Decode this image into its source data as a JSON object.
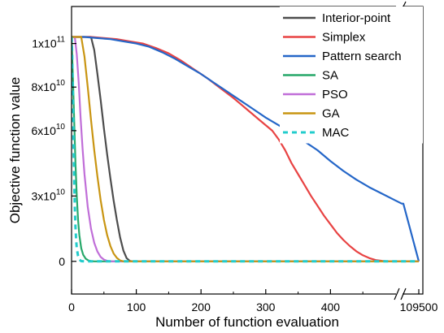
{
  "chart_data": {
    "type": "line",
    "xlabel": "Number of function evaluation",
    "ylabel": "Objective function value",
    "xlim": [
      0,
      109500
    ],
    "ylim": [
      -15000000000.0,
      117000000000.0
    ],
    "x_axis_break": {
      "from": 510,
      "to": 108500
    },
    "x_ticks": [
      {
        "value": 0,
        "label": "0"
      },
      {
        "value": 100,
        "label": "100"
      },
      {
        "value": 200,
        "label": "200"
      },
      {
        "value": 300,
        "label": "300"
      },
      {
        "value": 400,
        "label": "400"
      },
      {
        "value": 109500,
        "label": "109500"
      }
    ],
    "y_ticks": [
      {
        "value": 0,
        "label": "0",
        "mant": "",
        "exp": ""
      },
      {
        "value": 30000000000.0,
        "label": "3x10^10",
        "mant": "3x10",
        "exp": "10"
      },
      {
        "value": 60000000000.0,
        "label": "6x10^10",
        "mant": "6x10",
        "exp": "10"
      },
      {
        "value": 80000000000.0,
        "label": "8x10^10",
        "mant": "8x10",
        "exp": "10"
      },
      {
        "value": 100000000000.0,
        "label": "1x10^11",
        "mant": "1x10",
        "exp": "11"
      }
    ],
    "grid": false,
    "legend_position": "top-right",
    "series": [
      {
        "name": "Interior-point",
        "color": "#4d4d4d",
        "dash": false,
        "x": [
          0,
          30,
          35,
          40,
          45,
          50,
          55,
          60,
          65,
          70,
          75,
          80,
          85,
          90,
          95,
          109500
        ],
        "y": [
          103000000000.0,
          103000000000.0,
          97000000000.0,
          86000000000.0,
          74000000000.0,
          61000000000.0,
          49000000000.0,
          38000000000.0,
          28000000000.0,
          19000000000.0,
          11000000000.0,
          5000000000.0,
          1500000000.0,
          200000000.0,
          0,
          0
        ]
      },
      {
        "name": "Simplex",
        "color": "#e84343",
        "dash": false,
        "x": [
          0,
          10,
          30,
          50,
          70,
          90,
          110,
          130,
          150,
          170,
          190,
          210,
          230,
          250,
          270,
          290,
          310,
          320,
          330,
          340,
          350,
          360,
          370,
          380,
          390,
          400,
          410,
          420,
          430,
          440,
          450,
          460,
          470,
          480,
          490,
          500,
          108500,
          109500
        ],
        "y": [
          103000000000.0,
          103000000000.0,
          103000000000.0,
          102500000000.0,
          102000000000.0,
          101000000000.0,
          100000000000.0,
          98000000000.0,
          95500000000.0,
          92000000000.0,
          88000000000.0,
          84000000000.0,
          79500000000.0,
          75000000000.0,
          70000000000.0,
          65000000000.0,
          60000000000.0,
          56000000000.0,
          51000000000.0,
          45000000000.0,
          40000000000.0,
          35000000000.0,
          30000000000.0,
          25500000000.0,
          21000000000.0,
          17000000000.0,
          13000000000.0,
          9800000000.0,
          7000000000.0,
          4600000000.0,
          2800000000.0,
          1500000000.0,
          600000000.0,
          200000000.0,
          0,
          0,
          0,
          0
        ]
      },
      {
        "name": "Pattern search",
        "color": "#2466c8",
        "dash": false,
        "x": [
          0,
          20,
          40,
          60,
          80,
          100,
          120,
          140,
          160,
          180,
          200,
          220,
          240,
          260,
          280,
          300,
          320,
          340,
          360,
          380,
          400,
          420,
          440,
          460,
          480,
          500,
          510,
          108500,
          109500
        ],
        "y": [
          103000000000.0,
          103000000000.0,
          102500000000.0,
          102000000000.0,
          101000000000.0,
          100000000000.0,
          98500000000.0,
          96000000000.0,
          93000000000.0,
          89500000000.0,
          86000000000.0,
          82000000000.0,
          78000000000.0,
          74000000000.0,
          70000000000.0,
          66000000000.0,
          62500000000.0,
          59000000000.0,
          55000000000.0,
          51000000000.0,
          46000000000.0,
          41500000000.0,
          37500000000.0,
          34000000000.0,
          31000000000.0,
          28000000000.0,
          26500000000.0,
          26500000000.0,
          0
        ]
      },
      {
        "name": "SA",
        "color": "#27a86a",
        "dash": false,
        "x": [
          0,
          2,
          4,
          6,
          8,
          10,
          12,
          15,
          18,
          22,
          26,
          30,
          35,
          109500
        ],
        "y": [
          103000000000.0,
          85000000000.0,
          65000000000.0,
          45000000000.0,
          30000000000.0,
          19000000000.0,
          12000000000.0,
          6000000000.0,
          3000000000.0,
          1200000000.0,
          400000000.0,
          100000000.0,
          0,
          0
        ]
      },
      {
        "name": "PSO",
        "color": "#c06ed8",
        "dash": false,
        "x": [
          0,
          5,
          8,
          11,
          14,
          17,
          20,
          25,
          30,
          35,
          40,
          45,
          50,
          55,
          60,
          109500
        ],
        "y": [
          103000000000.0,
          103000000000.0,
          95000000000.0,
          82000000000.0,
          66000000000.0,
          52000000000.0,
          40000000000.0,
          25000000000.0,
          15000000000.0,
          8500000000.0,
          4500000000.0,
          2000000000.0,
          800000000.0,
          200000000.0,
          0,
          0
        ]
      },
      {
        "name": "GA",
        "color": "#c99512",
        "dash": false,
        "x": [
          0,
          15,
          20,
          25,
          30,
          35,
          40,
          45,
          50,
          55,
          60,
          65,
          70,
          75,
          80,
          109500
        ],
        "y": [
          103000000000.0,
          103000000000.0,
          94000000000.0,
          80000000000.0,
          65000000000.0,
          51000000000.0,
          39000000000.0,
          28000000000.0,
          19000000000.0,
          12000000000.0,
          7000000000.0,
          3600000000.0,
          1600000000.0,
          400000000.0,
          0,
          0
        ]
      },
      {
        "name": "MAC",
        "color": "#22cccc",
        "dash": true,
        "x": [
          0,
          1,
          2,
          3,
          4,
          5,
          6,
          7,
          8,
          10,
          12,
          15,
          20,
          109500
        ],
        "y": [
          103000000000.0,
          95000000000.0,
          75000000000.0,
          55000000000.0,
          38000000000.0,
          25000000000.0,
          16000000000.0,
          10000000000.0,
          6000000000.0,
          2500000000.0,
          800000000.0,
          100000000.0,
          0,
          0
        ]
      }
    ]
  }
}
